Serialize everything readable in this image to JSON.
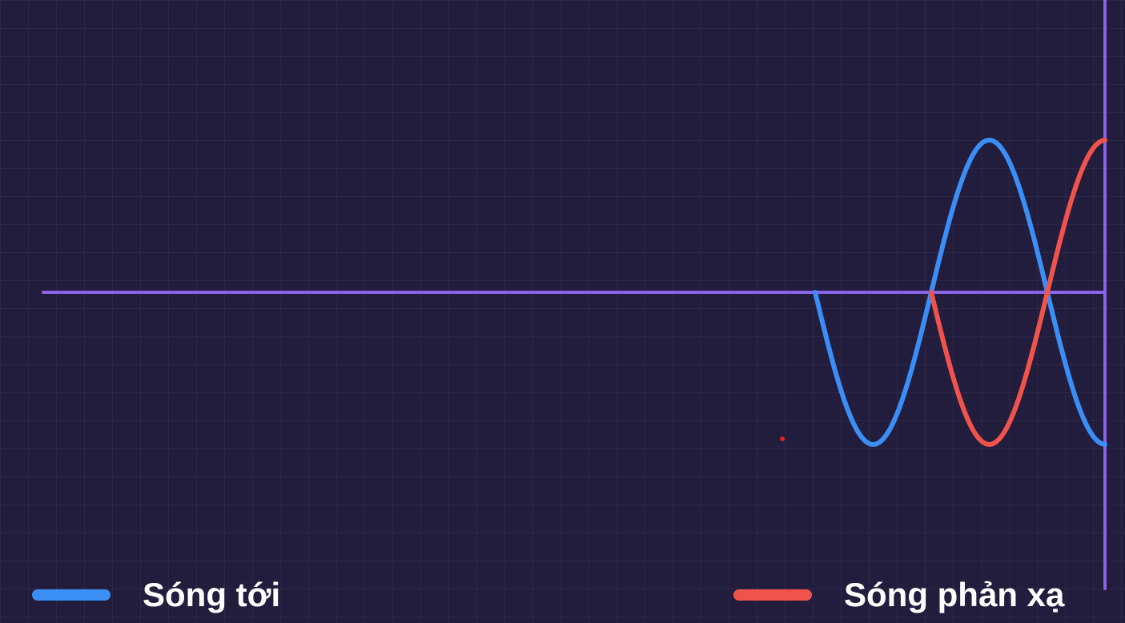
{
  "legend": {
    "incident_label": "Sóng tới",
    "reflected_label": "Sóng phản xạ"
  },
  "colors": {
    "background": "#221d3d",
    "string": "#8a63e8",
    "incident": "#3a8ef5",
    "reflected": "#f0534c",
    "marker": "#e0202a"
  }
}
